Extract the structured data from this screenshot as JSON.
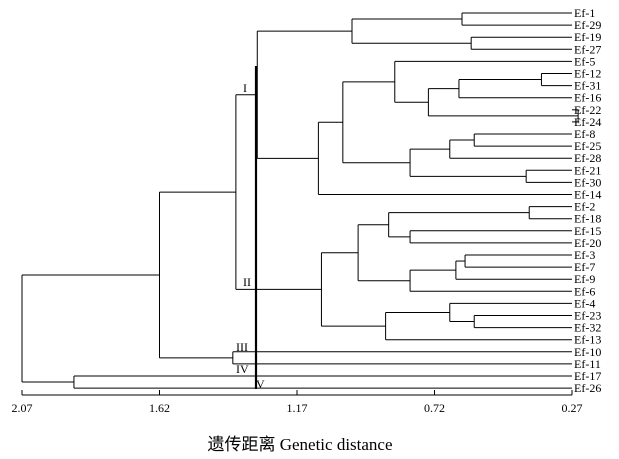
{
  "chart_data": {
    "type": "dendrogram",
    "xlabel": "遗传距离 Genetic distance",
    "axis": {
      "min": 0.27,
      "max": 2.07,
      "reversed": true,
      "ticks": [
        "2.07",
        "1.62",
        "1.17",
        "0.72",
        "0.27"
      ]
    },
    "leaves": [
      "Ef-1",
      "Ef-29",
      "Ef-19",
      "Ef-27",
      "Ef-5",
      "Ef-12",
      "Ef-31",
      "Ef-16",
      "Ef-22",
      "Ef-24",
      "Ef-8",
      "Ef-25",
      "Ef-28",
      "Ef-21",
      "Ef-30",
      "Ef-14",
      "Ef-2",
      "Ef-18",
      "Ef-15",
      "Ef-20",
      "Ef-3",
      "Ef-7",
      "Ef-9",
      "Ef-6",
      "Ef-4",
      "Ef-23",
      "Ef-32",
      "Ef-13",
      "Ef-10",
      "Ef-11",
      "Ef-17",
      "Ef-26"
    ],
    "merges": [
      {
        "a": "Ef-1",
        "b": "Ef-29",
        "h": 0.63
      },
      {
        "a": "Ef-19",
        "b": "Ef-27",
        "h": 0.6
      },
      {
        "a": "n0",
        "b": "n1",
        "h": 0.99
      },
      {
        "a": "Ef-12",
        "b": "Ef-31",
        "h": 0.37
      },
      {
        "a": "n3",
        "b": "Ef-16",
        "h": 0.64
      },
      {
        "a": "Ef-22",
        "b": "Ef-24",
        "h": 0.25
      },
      {
        "a": "n4",
        "b": "n5",
        "h": 0.74
      },
      {
        "a": "Ef-5",
        "b": "n6",
        "h": 0.85
      },
      {
        "a": "Ef-8",
        "b": "Ef-25",
        "h": 0.59
      },
      {
        "a": "n8",
        "b": "Ef-28",
        "h": 0.67
      },
      {
        "a": "Ef-21",
        "b": "Ef-30",
        "h": 0.42
      },
      {
        "a": "n9",
        "b": "n10",
        "h": 0.8
      },
      {
        "a": "n7",
        "b": "n11",
        "h": 1.02
      },
      {
        "a": "n12",
        "b": "Ef-14",
        "h": 1.1
      },
      {
        "a": "n2",
        "b": "n13",
        "h": 1.3
      },
      {
        "a": "Ef-2",
        "b": "Ef-18",
        "h": 0.41
      },
      {
        "a": "Ef-15",
        "b": "Ef-20",
        "h": 0.8
      },
      {
        "a": "n15",
        "b": "n16",
        "h": 0.87
      },
      {
        "a": "Ef-3",
        "b": "Ef-7",
        "h": 0.62
      },
      {
        "a": "n18",
        "b": "Ef-9",
        "h": 0.65
      },
      {
        "a": "n19",
        "b": "Ef-6",
        "h": 0.8
      },
      {
        "a": "n17",
        "b": "n20",
        "h": 0.97
      },
      {
        "a": "Ef-23",
        "b": "Ef-32",
        "h": 0.59
      },
      {
        "a": "Ef-4",
        "b": "n22",
        "h": 0.67
      },
      {
        "a": "n23",
        "b": "Ef-13",
        "h": 0.88
      },
      {
        "a": "n21",
        "b": "n24",
        "h": 1.09
      },
      {
        "a": "n14",
        "b": "n25",
        "h": 1.37
      },
      {
        "a": "Ef-10",
        "b": "Ef-11",
        "h": 1.38
      },
      {
        "a": "n26",
        "b": "n27",
        "h": 1.62
      },
      {
        "a": "Ef-17",
        "b": "Ef-26",
        "h": 1.9
      },
      {
        "a": "n28",
        "b": "n29",
        "h": 2.07
      }
    ],
    "clades": [
      "I",
      "II",
      "III",
      "IV",
      "V"
    ]
  }
}
